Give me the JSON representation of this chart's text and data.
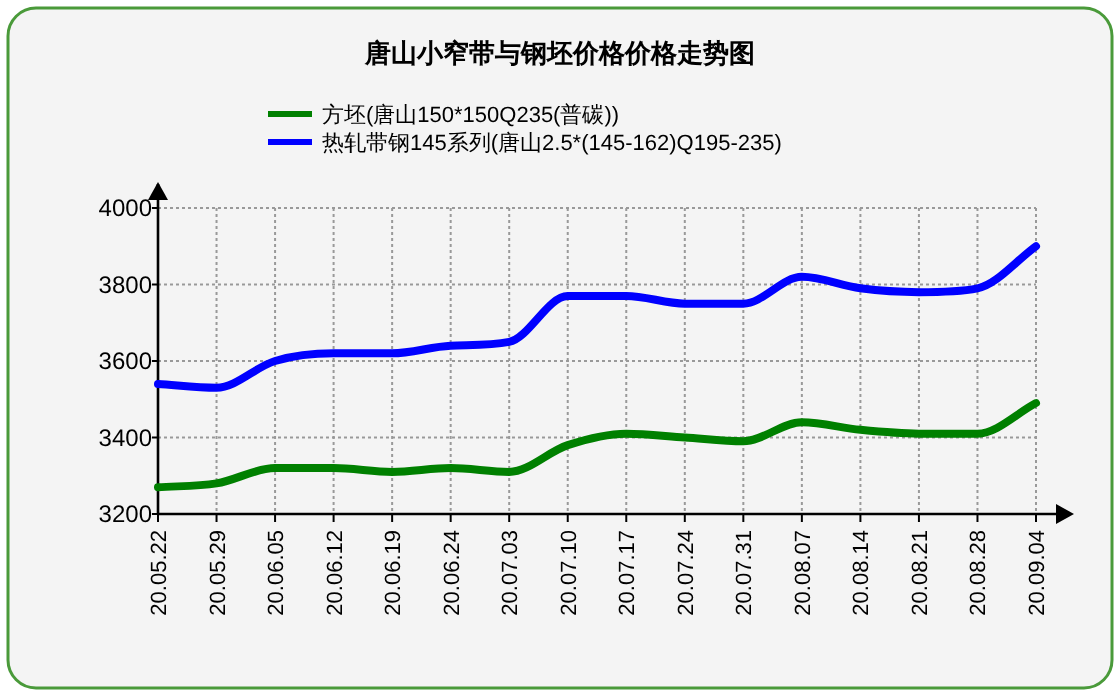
{
  "chart_data": {
    "type": "line",
    "title": "唐山小窄带与钢坯价格价格走势图",
    "categories": [
      "20.05.22",
      "20.05.29",
      "20.06.05",
      "20.06.12",
      "20.06.19",
      "20.06.24",
      "20.07.03",
      "20.07.10",
      "20.07.17",
      "20.07.24",
      "20.07.31",
      "20.08.07",
      "20.08.14",
      "20.08.21",
      "20.08.28",
      "20.09.04"
    ],
    "series": [
      {
        "name": "方坯(唐山150*150Q235(普碳))",
        "color": "#008000",
        "values": [
          3270,
          3280,
          3320,
          3320,
          3310,
          3320,
          3310,
          3380,
          3410,
          3400,
          3390,
          3440,
          3420,
          3410,
          3410,
          3490
        ]
      },
      {
        "name": "热轧带钢145系列(唐山2.5*(145-162)Q195-235)",
        "color": "#0000ff",
        "values": [
          3540,
          3530,
          3600,
          3620,
          3620,
          3640,
          3650,
          3770,
          3770,
          3750,
          3750,
          3820,
          3790,
          3780,
          3790,
          3900
        ]
      }
    ],
    "ylim": [
      3200,
      4000
    ],
    "yticks": [
      3200,
      3400,
      3600,
      3800,
      4000
    ],
    "grid": true,
    "legend": "top"
  }
}
